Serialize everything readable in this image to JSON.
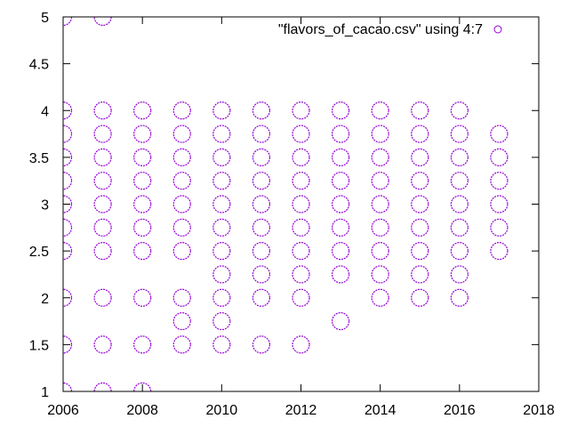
{
  "chart_data": {
    "type": "scatter",
    "title": "",
    "xlabel": "",
    "ylabel": "",
    "xlim": [
      2006,
      2018
    ],
    "ylim": [
      1,
      5
    ],
    "x_ticks": [
      "2006",
      "2008",
      "2010",
      "2012",
      "2014",
      "2016",
      "2018"
    ],
    "y_ticks": [
      "1",
      "1.5",
      "2",
      "2.5",
      "3",
      "3.5",
      "4",
      "4.5",
      "5"
    ],
    "grid": false,
    "legend_position": "top-right",
    "marker": "open-circle",
    "color": "#9400d3",
    "series": [
      {
        "name": "\"flavors_of_cacao.csv\" using 4:7",
        "points": [
          [
            2006,
            1
          ],
          [
            2006,
            1.5
          ],
          [
            2006,
            2
          ],
          [
            2006,
            2.5
          ],
          [
            2006,
            2.75
          ],
          [
            2006,
            3
          ],
          [
            2006,
            3.25
          ],
          [
            2006,
            3.5
          ],
          [
            2006,
            3.75
          ],
          [
            2006,
            4
          ],
          [
            2006,
            5
          ],
          [
            2007,
            1
          ],
          [
            2007,
            1.5
          ],
          [
            2007,
            2
          ],
          [
            2007,
            2.5
          ],
          [
            2007,
            2.75
          ],
          [
            2007,
            3
          ],
          [
            2007,
            3.25
          ],
          [
            2007,
            3.5
          ],
          [
            2007,
            3.75
          ],
          [
            2007,
            4
          ],
          [
            2007,
            5
          ],
          [
            2008,
            1
          ],
          [
            2008,
            1.5
          ],
          [
            2008,
            2
          ],
          [
            2008,
            2.5
          ],
          [
            2008,
            2.75
          ],
          [
            2008,
            3
          ],
          [
            2008,
            3.25
          ],
          [
            2008,
            3.5
          ],
          [
            2008,
            3.75
          ],
          [
            2008,
            4
          ],
          [
            2009,
            1.5
          ],
          [
            2009,
            1.75
          ],
          [
            2009,
            2
          ],
          [
            2009,
            2.5
          ],
          [
            2009,
            2.75
          ],
          [
            2009,
            3
          ],
          [
            2009,
            3.25
          ],
          [
            2009,
            3.5
          ],
          [
            2009,
            3.75
          ],
          [
            2009,
            4
          ],
          [
            2010,
            1.5
          ],
          [
            2010,
            1.75
          ],
          [
            2010,
            2
          ],
          [
            2010,
            2.25
          ],
          [
            2010,
            2.5
          ],
          [
            2010,
            2.75
          ],
          [
            2010,
            3
          ],
          [
            2010,
            3.25
          ],
          [
            2010,
            3.5
          ],
          [
            2010,
            3.75
          ],
          [
            2010,
            4
          ],
          [
            2011,
            1.5
          ],
          [
            2011,
            2
          ],
          [
            2011,
            2.25
          ],
          [
            2011,
            2.5
          ],
          [
            2011,
            2.75
          ],
          [
            2011,
            3
          ],
          [
            2011,
            3.25
          ],
          [
            2011,
            3.5
          ],
          [
            2011,
            3.75
          ],
          [
            2011,
            4
          ],
          [
            2012,
            1.5
          ],
          [
            2012,
            2
          ],
          [
            2012,
            2.25
          ],
          [
            2012,
            2.5
          ],
          [
            2012,
            2.75
          ],
          [
            2012,
            3
          ],
          [
            2012,
            3.25
          ],
          [
            2012,
            3.5
          ],
          [
            2012,
            3.75
          ],
          [
            2012,
            4
          ],
          [
            2013,
            1.75
          ],
          [
            2013,
            2.25
          ],
          [
            2013,
            2.5
          ],
          [
            2013,
            2.75
          ],
          [
            2013,
            3
          ],
          [
            2013,
            3.25
          ],
          [
            2013,
            3.5
          ],
          [
            2013,
            3.75
          ],
          [
            2013,
            4
          ],
          [
            2014,
            2
          ],
          [
            2014,
            2.25
          ],
          [
            2014,
            2.5
          ],
          [
            2014,
            2.75
          ],
          [
            2014,
            3
          ],
          [
            2014,
            3.25
          ],
          [
            2014,
            3.5
          ],
          [
            2014,
            3.75
          ],
          [
            2014,
            4
          ],
          [
            2015,
            2
          ],
          [
            2015,
            2.25
          ],
          [
            2015,
            2.5
          ],
          [
            2015,
            2.75
          ],
          [
            2015,
            3
          ],
          [
            2015,
            3.25
          ],
          [
            2015,
            3.5
          ],
          [
            2015,
            3.75
          ],
          [
            2015,
            4
          ],
          [
            2016,
            2
          ],
          [
            2016,
            2.25
          ],
          [
            2016,
            2.5
          ],
          [
            2016,
            2.75
          ],
          [
            2016,
            3
          ],
          [
            2016,
            3.25
          ],
          [
            2016,
            3.5
          ],
          [
            2016,
            3.75
          ],
          [
            2016,
            4
          ],
          [
            2017,
            2.5
          ],
          [
            2017,
            2.75
          ],
          [
            2017,
            3
          ],
          [
            2017,
            3.25
          ],
          [
            2017,
            3.5
          ],
          [
            2017,
            3.75
          ]
        ]
      }
    ]
  }
}
